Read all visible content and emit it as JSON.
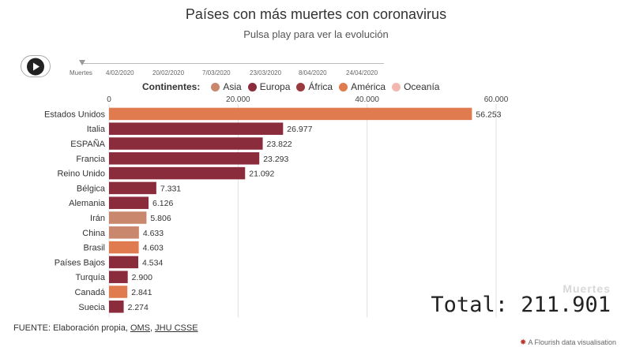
{
  "header": {
    "title": "Países con más muertes con coronavirus",
    "subtitle": "Pulsa play para ver la evolución"
  },
  "timeline": {
    "labels": [
      "Muertes",
      "4/02/2020",
      "20/02/2020",
      "7/03/2020",
      "23/03/2020",
      "8/04/2020",
      "24/04/2020"
    ]
  },
  "legend": {
    "title": "Continentes:",
    "items": [
      {
        "label": "Asia",
        "color": "#c9876d"
      },
      {
        "label": "Europa",
        "color": "#8b2c3c"
      },
      {
        "label": "África",
        "color": "#9a3a3e"
      },
      {
        "label": "América",
        "color": "#e07b4f"
      },
      {
        "label": "Oceanía",
        "color": "#f2b8b0"
      }
    ]
  },
  "chart_data": {
    "type": "bar",
    "orientation": "horizontal",
    "xlim": [
      0,
      60000
    ],
    "ticks": [
      {
        "value": 0,
        "label": "0"
      },
      {
        "value": 20000,
        "label": "20.000"
      },
      {
        "value": 40000,
        "label": "40.000"
      },
      {
        "value": 60000,
        "label": "60.000"
      }
    ],
    "categories": [
      "Estados Unidos",
      "Italia",
      "ESPAÑA",
      "Francia",
      "Reino Unido",
      "Bélgica",
      "Alemania",
      "Irán",
      "China",
      "Brasil",
      "Países Bajos",
      "Turquía",
      "Canadá",
      "Suecia"
    ],
    "values": [
      56253,
      26977,
      23822,
      23293,
      21092,
      7331,
      6126,
      5806,
      4633,
      4603,
      4534,
      2900,
      2841,
      2274
    ],
    "value_labels": [
      "56.253",
      "26.977",
      "23.822",
      "23.293",
      "21.092",
      "7.331",
      "6.126",
      "5.806",
      "4.633",
      "4.603",
      "4.534",
      "2.900",
      "2.841",
      "2.274"
    ],
    "continents": [
      "América",
      "Europa",
      "Europa",
      "Europa",
      "Europa",
      "Europa",
      "Europa",
      "Asia",
      "Asia",
      "América",
      "Europa",
      "Europa",
      "América",
      "Europa"
    ],
    "grid": true,
    "legend_position": "top"
  },
  "total": {
    "label": "Muertes",
    "value": "Total: 211.901"
  },
  "footer": {
    "prefix": "FUENTE: Elaboración propia, ",
    "link1": "OMS",
    "sep": ", ",
    "link2": "JHU CSSE"
  },
  "credit": {
    "text": "A Flourish data visualisation"
  }
}
